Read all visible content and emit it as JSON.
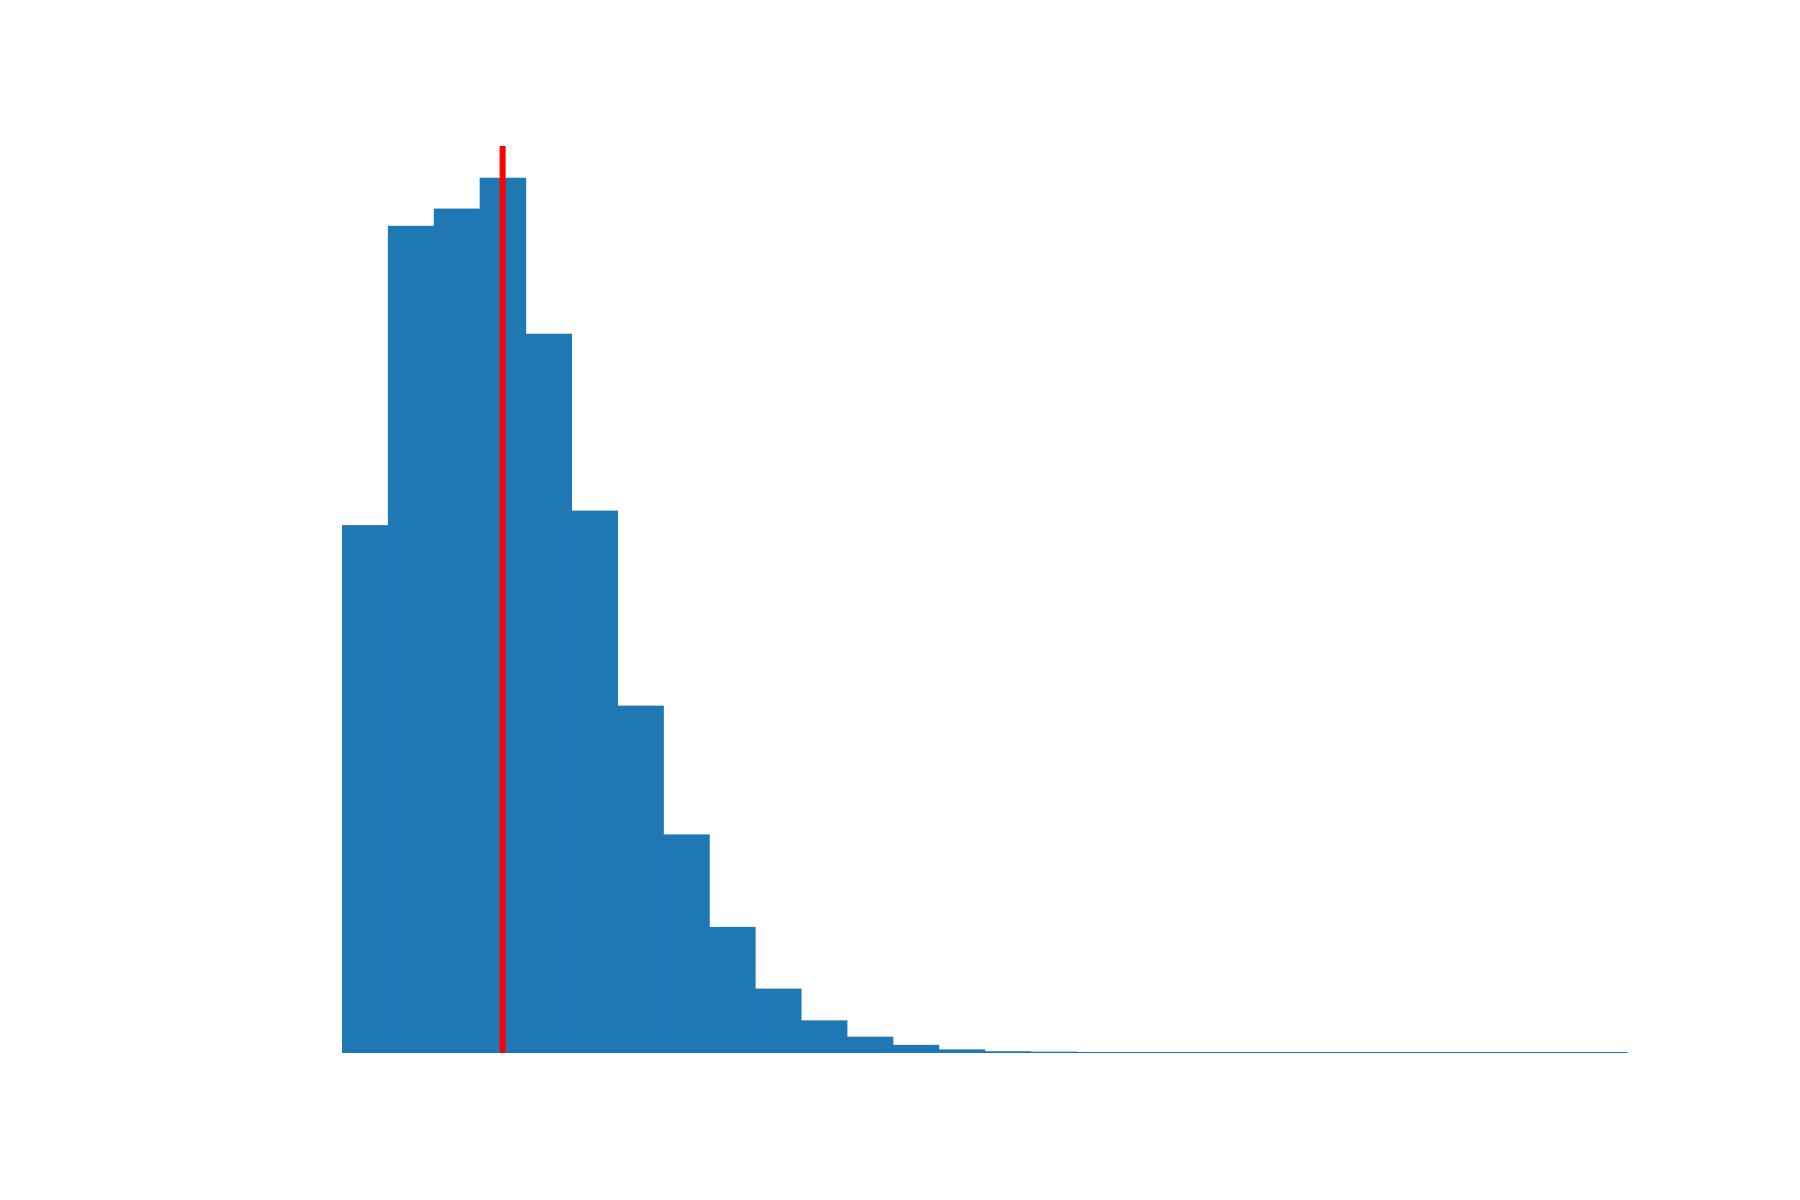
{
  "chart_data": {
    "type": "bar",
    "subtype": "histogram",
    "title": "",
    "xlabel": "",
    "ylabel": "",
    "axes_visible": false,
    "grid": false,
    "legend": "none",
    "bin_edges": [
      0,
      1,
      2,
      3,
      4,
      5,
      6,
      7,
      8,
      9,
      10,
      11,
      12,
      13,
      14,
      15,
      16,
      17,
      18,
      19,
      20,
      21,
      22,
      23,
      24,
      25,
      26,
      27,
      28
    ],
    "values": [
      0.582,
      0.912,
      0.931,
      0.965,
      0.793,
      0.598,
      0.383,
      0.241,
      0.139,
      0.071,
      0.036,
      0.018,
      0.009,
      0.004,
      0.002,
      0.0015,
      0.001,
      0.0008,
      0.0006,
      0.0005,
      0.0004,
      0.0003,
      0.0003,
      0.0002,
      0.0002,
      0.0002,
      0.0001,
      0.0001
    ],
    "ylim": [
      0,
      1.0
    ],
    "xlim": [
      0,
      28
    ],
    "reference_line": {
      "orientation": "vertical",
      "x": 3.5,
      "color": "#ff0000"
    },
    "colors": {
      "bars": "#1f77b4",
      "reference_line": "#ff0000"
    }
  }
}
